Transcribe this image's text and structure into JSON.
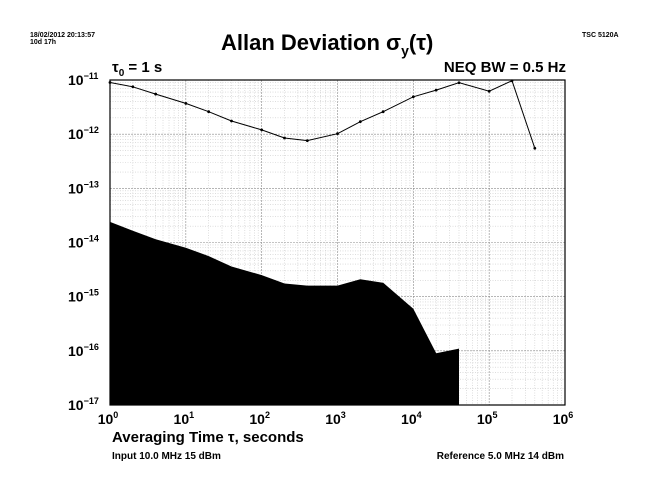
{
  "header": {
    "date": "18/02/2012 20:13:57",
    "duration": "10d 17h",
    "device": "TSC 5120A"
  },
  "chart_data": {
    "type": "line",
    "title": "Allan Deviation σy(τ)",
    "title_parts": {
      "main": "Allan Deviation σ",
      "sub": "y",
      "tail": "(τ)"
    },
    "tau0": {
      "main": "τ",
      "sub": "0",
      "tail": " = 1 s"
    },
    "neq_bw": "NEQ BW = 0.5 Hz",
    "xlabel": "Averaging Time τ, seconds",
    "x_scale": "log",
    "y_scale": "log",
    "xlim": [
      1,
      1000000
    ],
    "ylim": [
      1e-17,
      1e-11
    ],
    "grid": true,
    "x_ticks": [
      {
        "base": "10",
        "exp": "0"
      },
      {
        "base": "10",
        "exp": "1"
      },
      {
        "base": "10",
        "exp": "2"
      },
      {
        "base": "10",
        "exp": "3"
      },
      {
        "base": "10",
        "exp": "4"
      },
      {
        "base": "10",
        "exp": "5"
      },
      {
        "base": "10",
        "exp": "6"
      }
    ],
    "y_ticks": [
      {
        "base": "10",
        "exp": "−11"
      },
      {
        "base": "10",
        "exp": "−12"
      },
      {
        "base": "10",
        "exp": "−13"
      },
      {
        "base": "10",
        "exp": "−14"
      },
      {
        "base": "10",
        "exp": "−15"
      },
      {
        "base": "10",
        "exp": "−16"
      },
      {
        "base": "10",
        "exp": "−17"
      }
    ],
    "series": [
      {
        "x": [
          1,
          2,
          4,
          10,
          20,
          40,
          100,
          200,
          400,
          1000,
          2000,
          4000,
          10000,
          20000,
          40000,
          100000,
          200000,
          400000
        ],
        "y": [
          9e-12,
          7.5e-12,
          5.5e-12,
          3.7e-12,
          2.6e-12,
          1.75e-12,
          1.2e-12,
          8.5e-13,
          7.6e-13,
          1.02e-12,
          1.7e-12,
          2.6e-12,
          4.9e-12,
          6.5e-12,
          8.9e-12,
          6.2e-12,
          9.7e-12,
          5.5e-13
        ],
        "color": "#000000",
        "marker": "dot"
      }
    ],
    "noise_floor": {
      "type": "area",
      "fill": "#000000",
      "x": [
        1,
        2,
        4,
        10,
        20,
        40,
        100,
        200,
        400,
        1000,
        2000,
        4000,
        10000,
        20000,
        40000
      ],
      "y": [
        2.4e-14,
        1.65e-14,
        1.15e-14,
        8e-15,
        5.6e-15,
        3.6e-15,
        2.5e-15,
        1.75e-15,
        1.6e-15,
        1.6e-15,
        2.1e-15,
        1.8e-15,
        6e-16,
        9e-17,
        1.1e-16
      ]
    }
  },
  "footer": {
    "input": "Input 10.0 MHz 15 dBm",
    "reference": "Reference 5.0 MHz 14 dBm"
  }
}
